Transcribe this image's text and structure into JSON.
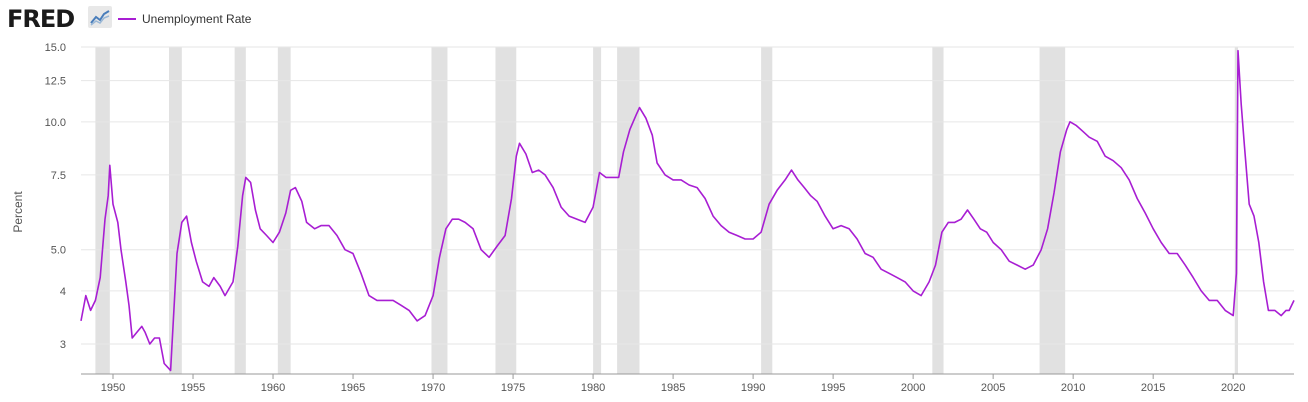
{
  "header": {
    "logo_text": "FRED",
    "logo_icon": "fred-chart-mark-icon"
  },
  "colors": {
    "series": "#a81ed3",
    "recession": "#e1e1e1",
    "grid": "#e6e6e6",
    "text": "#555555"
  },
  "chart_data": {
    "type": "line",
    "title": "",
    "xlabel": "",
    "ylabel": "Percent",
    "y_scale": "log",
    "ylim": [
      2.55,
      15.0
    ],
    "xlim": [
      1948.0,
      2023.8
    ],
    "y_ticks": [
      {
        "value": 3,
        "label": "3"
      },
      {
        "value": 4,
        "label": "4"
      },
      {
        "value": 5,
        "label": "5.0"
      },
      {
        "value": 7.5,
        "label": "7.5"
      },
      {
        "value": 10,
        "label": "10.0"
      },
      {
        "value": 12.5,
        "label": "12.5"
      },
      {
        "value": 15,
        "label": "15.0"
      }
    ],
    "x_ticks": [
      1950,
      1955,
      1960,
      1965,
      1970,
      1975,
      1980,
      1985,
      1990,
      1995,
      2000,
      2005,
      2010,
      2015,
      2020
    ],
    "grid": true,
    "legend": "top-left",
    "recessions": [
      [
        1948.9,
        1949.8
      ],
      [
        1953.5,
        1954.3
      ],
      [
        1957.6,
        1958.3
      ],
      [
        1960.3,
        1961.1
      ],
      [
        1969.9,
        1970.9
      ],
      [
        1973.9,
        1975.2
      ],
      [
        1980.0,
        1980.5
      ],
      [
        1981.5,
        1982.9
      ],
      [
        1990.5,
        1991.2
      ],
      [
        2001.2,
        2001.9
      ],
      [
        2007.9,
        2009.5
      ],
      [
        2020.1,
        2020.3
      ]
    ],
    "series": [
      {
        "name": "Unemployment Rate",
        "points": [
          [
            1948.0,
            3.4
          ],
          [
            1948.3,
            3.9
          ],
          [
            1948.6,
            3.6
          ],
          [
            1948.9,
            3.8
          ],
          [
            1949.2,
            4.3
          ],
          [
            1949.5,
            5.9
          ],
          [
            1949.7,
            6.7
          ],
          [
            1949.8,
            7.9
          ],
          [
            1950.0,
            6.4
          ],
          [
            1950.3,
            5.8
          ],
          [
            1950.5,
            5.0
          ],
          [
            1950.8,
            4.2
          ],
          [
            1951.0,
            3.7
          ],
          [
            1951.2,
            3.1
          ],
          [
            1951.5,
            3.2
          ],
          [
            1951.8,
            3.3
          ],
          [
            1952.0,
            3.2
          ],
          [
            1952.3,
            3.0
          ],
          [
            1952.6,
            3.1
          ],
          [
            1952.9,
            3.1
          ],
          [
            1953.2,
            2.7
          ],
          [
            1953.6,
            2.6
          ],
          [
            1954.0,
            4.9
          ],
          [
            1954.3,
            5.8
          ],
          [
            1954.6,
            6.0
          ],
          [
            1954.9,
            5.2
          ],
          [
            1955.2,
            4.7
          ],
          [
            1955.6,
            4.2
          ],
          [
            1956.0,
            4.1
          ],
          [
            1956.3,
            4.3
          ],
          [
            1956.7,
            4.1
          ],
          [
            1957.0,
            3.9
          ],
          [
            1957.5,
            4.2
          ],
          [
            1957.8,
            5.1
          ],
          [
            1958.1,
            6.7
          ],
          [
            1958.3,
            7.4
          ],
          [
            1958.6,
            7.2
          ],
          [
            1958.9,
            6.2
          ],
          [
            1959.2,
            5.6
          ],
          [
            1959.6,
            5.4
          ],
          [
            1960.0,
            5.2
          ],
          [
            1960.4,
            5.5
          ],
          [
            1960.8,
            6.1
          ],
          [
            1961.1,
            6.9
          ],
          [
            1961.4,
            7.0
          ],
          [
            1961.8,
            6.5
          ],
          [
            1962.1,
            5.8
          ],
          [
            1962.6,
            5.6
          ],
          [
            1963.0,
            5.7
          ],
          [
            1963.5,
            5.7
          ],
          [
            1964.0,
            5.4
          ],
          [
            1964.5,
            5.0
          ],
          [
            1965.0,
            4.9
          ],
          [
            1965.5,
            4.4
          ],
          [
            1966.0,
            3.9
          ],
          [
            1966.5,
            3.8
          ],
          [
            1967.0,
            3.8
          ],
          [
            1967.5,
            3.8
          ],
          [
            1968.0,
            3.7
          ],
          [
            1968.5,
            3.6
          ],
          [
            1969.0,
            3.4
          ],
          [
            1969.5,
            3.5
          ],
          [
            1970.0,
            3.9
          ],
          [
            1970.4,
            4.8
          ],
          [
            1970.8,
            5.6
          ],
          [
            1971.2,
            5.9
          ],
          [
            1971.6,
            5.9
          ],
          [
            1972.0,
            5.8
          ],
          [
            1972.5,
            5.6
          ],
          [
            1973.0,
            5.0
          ],
          [
            1973.5,
            4.8
          ],
          [
            1974.0,
            5.1
          ],
          [
            1974.5,
            5.4
          ],
          [
            1974.9,
            6.6
          ],
          [
            1975.2,
            8.3
          ],
          [
            1975.4,
            8.9
          ],
          [
            1975.8,
            8.4
          ],
          [
            1976.2,
            7.6
          ],
          [
            1976.6,
            7.7
          ],
          [
            1977.0,
            7.5
          ],
          [
            1977.5,
            7.0
          ],
          [
            1978.0,
            6.3
          ],
          [
            1978.5,
            6.0
          ],
          [
            1979.0,
            5.9
          ],
          [
            1979.5,
            5.8
          ],
          [
            1980.0,
            6.3
          ],
          [
            1980.4,
            7.6
          ],
          [
            1980.8,
            7.4
          ],
          [
            1981.2,
            7.4
          ],
          [
            1981.6,
            7.4
          ],
          [
            1981.9,
            8.5
          ],
          [
            1982.3,
            9.6
          ],
          [
            1982.7,
            10.4
          ],
          [
            1982.9,
            10.8
          ],
          [
            1983.3,
            10.2
          ],
          [
            1983.7,
            9.3
          ],
          [
            1984.0,
            8.0
          ],
          [
            1984.5,
            7.5
          ],
          [
            1985.0,
            7.3
          ],
          [
            1985.5,
            7.3
          ],
          [
            1986.0,
            7.1
          ],
          [
            1986.5,
            7.0
          ],
          [
            1987.0,
            6.6
          ],
          [
            1987.5,
            6.0
          ],
          [
            1988.0,
            5.7
          ],
          [
            1988.5,
            5.5
          ],
          [
            1989.0,
            5.4
          ],
          [
            1989.5,
            5.3
          ],
          [
            1990.0,
            5.3
          ],
          [
            1990.5,
            5.5
          ],
          [
            1991.0,
            6.4
          ],
          [
            1991.5,
            6.9
          ],
          [
            1992.0,
            7.3
          ],
          [
            1992.4,
            7.7
          ],
          [
            1992.8,
            7.3
          ],
          [
            1993.2,
            7.0
          ],
          [
            1993.6,
            6.7
          ],
          [
            1994.0,
            6.5
          ],
          [
            1994.5,
            6.0
          ],
          [
            1995.0,
            5.6
          ],
          [
            1995.5,
            5.7
          ],
          [
            1996.0,
            5.6
          ],
          [
            1996.5,
            5.3
          ],
          [
            1997.0,
            4.9
          ],
          [
            1997.5,
            4.8
          ],
          [
            1998.0,
            4.5
          ],
          [
            1998.5,
            4.4
          ],
          [
            1999.0,
            4.3
          ],
          [
            1999.5,
            4.2
          ],
          [
            2000.0,
            4.0
          ],
          [
            2000.5,
            3.9
          ],
          [
            2001.0,
            4.2
          ],
          [
            2001.4,
            4.6
          ],
          [
            2001.8,
            5.5
          ],
          [
            2002.2,
            5.8
          ],
          [
            2002.6,
            5.8
          ],
          [
            2003.0,
            5.9
          ],
          [
            2003.4,
            6.2
          ],
          [
            2003.8,
            5.9
          ],
          [
            2004.2,
            5.6
          ],
          [
            2004.6,
            5.5
          ],
          [
            2005.0,
            5.2
          ],
          [
            2005.5,
            5.0
          ],
          [
            2006.0,
            4.7
          ],
          [
            2006.5,
            4.6
          ],
          [
            2007.0,
            4.5
          ],
          [
            2007.5,
            4.6
          ],
          [
            2008.0,
            5.0
          ],
          [
            2008.4,
            5.6
          ],
          [
            2008.8,
            6.8
          ],
          [
            2009.2,
            8.5
          ],
          [
            2009.6,
            9.6
          ],
          [
            2009.8,
            10.0
          ],
          [
            2010.2,
            9.8
          ],
          [
            2010.6,
            9.5
          ],
          [
            2011.0,
            9.2
          ],
          [
            2011.5,
            9.0
          ],
          [
            2012.0,
            8.3
          ],
          [
            2012.5,
            8.1
          ],
          [
            2013.0,
            7.8
          ],
          [
            2013.5,
            7.3
          ],
          [
            2014.0,
            6.6
          ],
          [
            2014.5,
            6.1
          ],
          [
            2015.0,
            5.6
          ],
          [
            2015.5,
            5.2
          ],
          [
            2016.0,
            4.9
          ],
          [
            2016.5,
            4.9
          ],
          [
            2017.0,
            4.6
          ],
          [
            2017.5,
            4.3
          ],
          [
            2018.0,
            4.0
          ],
          [
            2018.5,
            3.8
          ],
          [
            2019.0,
            3.8
          ],
          [
            2019.5,
            3.6
          ],
          [
            2020.0,
            3.5
          ],
          [
            2020.2,
            4.4
          ],
          [
            2020.3,
            14.7
          ],
          [
            2020.5,
            11.0
          ],
          [
            2020.7,
            8.8
          ],
          [
            2021.0,
            6.4
          ],
          [
            2021.3,
            6.0
          ],
          [
            2021.6,
            5.2
          ],
          [
            2021.9,
            4.2
          ],
          [
            2022.2,
            3.6
          ],
          [
            2022.6,
            3.6
          ],
          [
            2023.0,
            3.5
          ],
          [
            2023.3,
            3.6
          ],
          [
            2023.5,
            3.6
          ],
          [
            2023.8,
            3.8
          ]
        ]
      }
    ]
  }
}
